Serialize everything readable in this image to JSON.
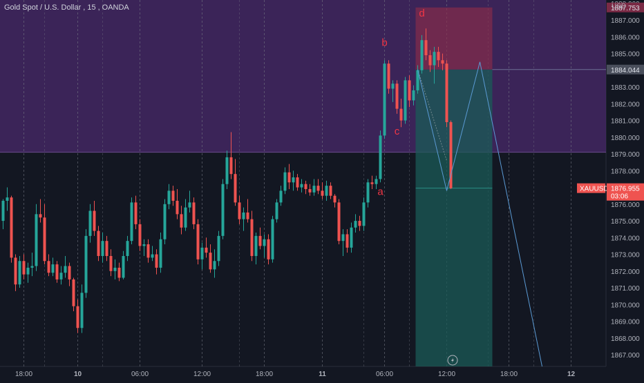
{
  "header": {
    "symbol_label": "Gold Spot / U.S. Dollar",
    "interval": "15",
    "broker": "OANDA"
  },
  "price_axis": {
    "currency": "USD",
    "top_label": "1888.000",
    "ticks": [
      "1887.000",
      "1886.000",
      "1885.000",
      "1884.000",
      "1883.000",
      "1882.000",
      "1881.000",
      "1880.000",
      "1879.000",
      "1878.000",
      "1877.000",
      "1876.000",
      "1875.000",
      "1874.000",
      "1873.000",
      "1872.000",
      "1871.000",
      "1870.000",
      "1869.000",
      "1868.000",
      "1867.000"
    ],
    "stop_tag": "1887.753",
    "entry_tag": "1884.044",
    "last_tag_symbol": "XAUUSD",
    "last_tag_price": "1876.955",
    "last_tag_countdown": "03:06"
  },
  "time_axis": {
    "labels": [
      {
        "text": "18:00",
        "bold": false
      },
      {
        "text": "10",
        "bold": true
      },
      {
        "text": "06:00",
        "bold": false
      },
      {
        "text": "12:00",
        "bold": false
      },
      {
        "text": "18:00",
        "bold": false
      },
      {
        "text": "11",
        "bold": true
      },
      {
        "text": "06:00",
        "bold": false
      },
      {
        "text": "12:00",
        "bold": false
      },
      {
        "text": "18:00",
        "bold": false
      },
      {
        "text": "12",
        "bold": true
      }
    ]
  },
  "annotations": [
    {
      "label": "a",
      "bar": 91,
      "price": 1876.55
    },
    {
      "label": "b",
      "bar": 92,
      "price": 1885.45
    },
    {
      "label": "c",
      "bar": 95,
      "price": 1880.15
    },
    {
      "label": "d",
      "bar": 101,
      "price": 1887.2
    }
  ],
  "colors": {
    "background": "#131722",
    "up": "#26a69a",
    "down": "#ef5350",
    "zone": "#4a2a6b",
    "stop_zone": "#8c2d4a",
    "target_zone": "#1b5b57",
    "projection": "#5b9bd5",
    "grid": "#787b86",
    "annotation": "#f23645",
    "price_text": "#b2b5be"
  },
  "chart_data": {
    "type": "candlestick",
    "title": "Gold Spot / U.S. Dollar, 15, OANDA",
    "y_range": [
      1866.3,
      1888.2
    ],
    "bar_count": 147,
    "supply_zone": [
      1879.1,
      1888.2
    ],
    "position": {
      "entry": 1884.044,
      "stop": 1887.753,
      "target_zone_floor": 1866.3,
      "start_bar": 100,
      "end_bar": 118
    },
    "projection_path": [
      [
        100,
        1884.044
      ],
      [
        107,
        1876.8
      ],
      [
        115,
        1884.5
      ],
      [
        130,
        1866.3
      ]
    ],
    "candles": [
      [
        1875,
        1876.3,
        1874.5,
        1876.2
      ],
      [
        1876.2,
        1877,
        1875.6,
        1876.4
      ],
      [
        1876.4,
        1876.5,
        1872.5,
        1872.8
      ],
      [
        1872.8,
        1873,
        1870.8,
        1871.2
      ],
      [
        1871.2,
        1872.9,
        1871,
        1872.6
      ],
      [
        1872.6,
        1873,
        1871.5,
        1871.8
      ],
      [
        1871.8,
        1872.5,
        1871.3,
        1872.2
      ],
      [
        1872.2,
        1873.1,
        1871.7,
        1872.3
      ],
      [
        1872.3,
        1876,
        1872,
        1875.4
      ],
      [
        1875.4,
        1876.3,
        1874.9,
        1875.2
      ],
      [
        1875.2,
        1876,
        1872.4,
        1872.6
      ],
      [
        1872.6,
        1873,
        1871.7,
        1871.9
      ],
      [
        1871.9,
        1872.8,
        1871.7,
        1872.4
      ],
      [
        1872.4,
        1872.6,
        1871.3,
        1871.5
      ],
      [
        1871.5,
        1872.3,
        1871.2,
        1871.9
      ],
      [
        1871.9,
        1872.9,
        1871.6,
        1872.3
      ],
      [
        1872.3,
        1872.5,
        1871.1,
        1871.5
      ],
      [
        1871.5,
        1871.6,
        1869.6,
        1869.9
      ],
      [
        1869.9,
        1870.3,
        1868.3,
        1868.6
      ],
      [
        1868.6,
        1871.2,
        1868.3,
        1870.7
      ],
      [
        1870.7,
        1874.5,
        1870.4,
        1874.1
      ],
      [
        1874.1,
        1876,
        1873.7,
        1875.6
      ],
      [
        1875.6,
        1876.2,
        1874.1,
        1874.4
      ],
      [
        1874.4,
        1874.7,
        1872.6,
        1872.9
      ],
      [
        1872.9,
        1874.3,
        1872.5,
        1873.8
      ],
      [
        1873.8,
        1874.1,
        1872.6,
        1872.9
      ],
      [
        1872.9,
        1873.3,
        1871.7,
        1872
      ],
      [
        1872,
        1872.7,
        1871.5,
        1872.2
      ],
      [
        1872.2,
        1872.5,
        1871.4,
        1871.6
      ],
      [
        1871.6,
        1873.2,
        1871.5,
        1872.9
      ],
      [
        1872.9,
        1874.1,
        1872.6,
        1873.8
      ],
      [
        1873.8,
        1876.4,
        1873.6,
        1876.1
      ],
      [
        1876.1,
        1876.5,
        1874.5,
        1874.8
      ],
      [
        1874.8,
        1875.1,
        1873.2,
        1873.5
      ],
      [
        1873.5,
        1873.9,
        1872.9,
        1873.6
      ],
      [
        1873.6,
        1873.9,
        1872.5,
        1872.8
      ],
      [
        1872.8,
        1873.5,
        1872.6,
        1873
      ],
      [
        1873,
        1873.3,
        1871.8,
        1872.2
      ],
      [
        1872.2,
        1874.3,
        1871.9,
        1873.9
      ],
      [
        1873.9,
        1876.3,
        1873.6,
        1876
      ],
      [
        1876,
        1877.2,
        1875.7,
        1876.8
      ],
      [
        1876.8,
        1877.1,
        1875.9,
        1876.2
      ],
      [
        1876.2,
        1876.9,
        1875.1,
        1875.4
      ],
      [
        1875.4,
        1875.9,
        1874.2,
        1874.6
      ],
      [
        1874.6,
        1876.3,
        1874.4,
        1875.8
      ],
      [
        1875.8,
        1876.8,
        1875.5,
        1876.1
      ],
      [
        1876.1,
        1876.4,
        1874.5,
        1874.8
      ],
      [
        1874.8,
        1875.1,
        1872.4,
        1872.7
      ],
      [
        1872.7,
        1873.7,
        1872.1,
        1873.4
      ],
      [
        1873.4,
        1874,
        1872.8,
        1873.1
      ],
      [
        1873.1,
        1873.6,
        1871.9,
        1872.1
      ],
      [
        1872.1,
        1873.3,
        1871.6,
        1872.6
      ],
      [
        1872.6,
        1874.4,
        1872.3,
        1874.1
      ],
      [
        1874.1,
        1877.5,
        1873.9,
        1877.2
      ],
      [
        1877.2,
        1879.2,
        1876.9,
        1878.8
      ],
      [
        1878.8,
        1880.3,
        1877.5,
        1877.8
      ],
      [
        1877.8,
        1878.7,
        1875.9,
        1876.1
      ],
      [
        1876.1,
        1876.5,
        1874.8,
        1875.1
      ],
      [
        1875.1,
        1875.8,
        1874.4,
        1875.5
      ],
      [
        1875.5,
        1876.3,
        1874.9,
        1875.1
      ],
      [
        1875.1,
        1875.6,
        1872.6,
        1872.9
      ],
      [
        1872.9,
        1874.3,
        1872.4,
        1874.1
      ],
      [
        1874.1,
        1874.6,
        1873.3,
        1873.5
      ],
      [
        1873.5,
        1874.2,
        1872.8,
        1873.9
      ],
      [
        1873.9,
        1874.2,
        1872.4,
        1872.7
      ],
      [
        1872.7,
        1875.3,
        1872.5,
        1875.1
      ],
      [
        1875.1,
        1876.3,
        1874.9,
        1876.1
      ],
      [
        1876.1,
        1877.1,
        1875.9,
        1876.8
      ],
      [
        1876.8,
        1878.2,
        1876.6,
        1877.9
      ],
      [
        1877.9,
        1878.4,
        1876.9,
        1877.3
      ],
      [
        1877.3,
        1878,
        1876.8,
        1877.6
      ],
      [
        1877.6,
        1877.8,
        1876.8,
        1877
      ],
      [
        1877,
        1877.5,
        1876.7,
        1877.2
      ],
      [
        1877.2,
        1877.4,
        1876.6,
        1876.9
      ],
      [
        1876.9,
        1877.2,
        1876.5,
        1876.7
      ],
      [
        1876.7,
        1877.5,
        1876.5,
        1877.1
      ],
      [
        1877.1,
        1877.5,
        1876.6,
        1876.8
      ],
      [
        1876.8,
        1877.3,
        1876.3,
        1876.5
      ],
      [
        1876.5,
        1877.4,
        1876.2,
        1877.1
      ],
      [
        1877.1,
        1877.3,
        1876.3,
        1876.5
      ],
      [
        1876.5,
        1876.6,
        1875.8,
        1876.1
      ],
      [
        1876.1,
        1876.3,
        1873.6,
        1873.8
      ],
      [
        1873.8,
        1874.5,
        1872.9,
        1874.2
      ],
      [
        1874.2,
        1874.5,
        1873.1,
        1873.4
      ],
      [
        1873.4,
        1874.9,
        1873.1,
        1874.6
      ],
      [
        1874.6,
        1875.4,
        1874.3,
        1875
      ],
      [
        1875,
        1875.3,
        1874.4,
        1874.7
      ],
      [
        1874.7,
        1876.4,
        1874.4,
        1876.1
      ],
      [
        1876.1,
        1877.5,
        1875.8,
        1877.3
      ],
      [
        1877.3,
        1877.7,
        1876.9,
        1877.2
      ],
      [
        1877.2,
        1877.7,
        1876.9,
        1877.5
      ],
      [
        1877.5,
        1880.4,
        1877.3,
        1880.1
      ],
      [
        1880.1,
        1884.6,
        1879.9,
        1884.4
      ],
      [
        1884.4,
        1884.6,
        1882.6,
        1882.9
      ],
      [
        1882.9,
        1883.4,
        1882.1,
        1883.2
      ],
      [
        1883.2,
        1883.4,
        1881.4,
        1881.7
      ],
      [
        1881.7,
        1882.3,
        1880.6,
        1881
      ],
      [
        1881,
        1883.6,
        1880.8,
        1883.4
      ],
      [
        1883.4,
        1883.7,
        1881.8,
        1882.2
      ],
      [
        1882.2,
        1883.1,
        1881.9,
        1882.8
      ],
      [
        1882.8,
        1884.3,
        1882.6,
        1884
      ],
      [
        1884,
        1886.1,
        1883.8,
        1885.8
      ],
      [
        1885.8,
        1886.5,
        1884.6,
        1884.9
      ],
      [
        1884.9,
        1885.2,
        1883.9,
        1884.3
      ],
      [
        1884.3,
        1885.4,
        1883.2,
        1885.1
      ],
      [
        1885.1,
        1885.4,
        1884.2,
        1884.6
      ],
      [
        1884.6,
        1885,
        1884,
        1884.4
      ],
      [
        1884.4,
        1884.6,
        1880.6,
        1880.9
      ],
      [
        1880.9,
        1881,
        1876.9,
        1876.955
      ]
    ]
  }
}
